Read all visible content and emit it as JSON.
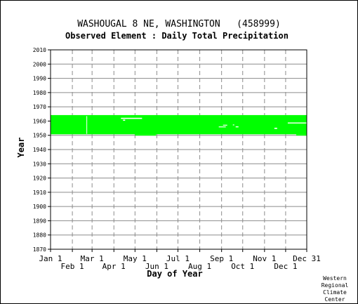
{
  "chart_data": {
    "type": "heatmap",
    "title": "WASHOUGAL 8 NE, WASHINGTON   (458999)",
    "subtitle": "Observed Element : Daily Total Precipitation",
    "xlabel": "Day of Year",
    "ylabel": "Year",
    "ylim": [
      1870,
      2010
    ],
    "xlim": [
      1,
      365
    ],
    "y_ticks": [
      1870,
      1880,
      1890,
      1900,
      1910,
      1920,
      1930,
      1940,
      1950,
      1960,
      1970,
      1980,
      1990,
      2000,
      2010
    ],
    "x_ticks_upper": [
      {
        "label": "Jan 1",
        "day": 1
      },
      {
        "label": "Mar 1",
        "day": 60
      },
      {
        "label": "May 1",
        "day": 121
      },
      {
        "label": "Jul 1",
        "day": 182
      },
      {
        "label": "Sep 1",
        "day": 244
      },
      {
        "label": "Nov 1",
        "day": 305
      },
      {
        "label": "Dec 31",
        "day": 365
      }
    ],
    "x_ticks_lower": [
      {
        "label": "Feb 1",
        "day": 32
      },
      {
        "label": "Apr 1",
        "day": 91
      },
      {
        "label": "Jun 1",
        "day": 152
      },
      {
        "label": "Aug 1",
        "day": 213
      },
      {
        "label": "Oct 1",
        "day": 274
      },
      {
        "label": "Dec 1",
        "day": 335
      }
    ],
    "grid": true,
    "data_color": "#00ff00",
    "coverage": [
      {
        "year_start": 1950.7,
        "year_end": 1964.2,
        "day_start": 1,
        "day_end": 365
      },
      {
        "year_start": 1949.8,
        "year_end": 1950.7,
        "day_start": 121,
        "day_end": 151
      },
      {
        "year_start": 1949.8,
        "year_end": 1950.7,
        "day_start": 350,
        "day_end": 365
      }
    ],
    "gaps": [
      {
        "year_start": 1961.5,
        "year_end": 1962.3,
        "day_start": 101,
        "day_end": 131
      },
      {
        "year_start": 1960.2,
        "year_end": 1961.0,
        "day_start": 104,
        "day_end": 107
      },
      {
        "year_start": 1955.6,
        "year_end": 1956.2,
        "day_start": 240,
        "day_end": 250
      },
      {
        "year_start": 1956.8,
        "year_end": 1957.4,
        "day_start": 246,
        "day_end": 252
      },
      {
        "year_start": 1955.6,
        "year_end": 1956.3,
        "day_start": 264,
        "day_end": 268
      },
      {
        "year_start": 1957.0,
        "year_end": 1957.6,
        "day_start": 260,
        "day_end": 262
      },
      {
        "year_start": 1954.5,
        "year_end": 1955.3,
        "day_start": 319,
        "day_end": 323
      },
      {
        "year_start": 1958.3,
        "year_end": 1959.0,
        "day_start": 338,
        "day_end": 365
      },
      {
        "year_start": 1951.0,
        "year_end": 1963.5,
        "day_start": 52,
        "day_end": 52.6
      }
    ]
  },
  "credit": [
    "Western",
    "Regional",
    "Climate",
    "Center"
  ],
  "colors": {
    "grid": "#8c8c8c",
    "axis": "#000000",
    "background": "#ffffff",
    "data": "#00ff00"
  }
}
